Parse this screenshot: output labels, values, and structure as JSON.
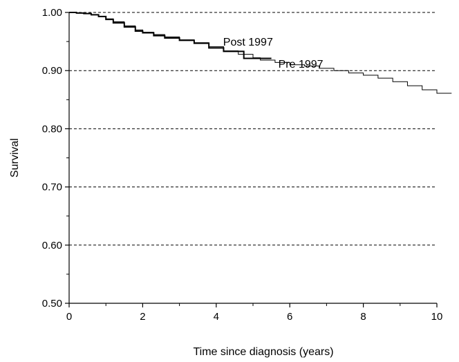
{
  "chart_data": {
    "type": "line",
    "title": "",
    "xlabel": "Time since diagnosis (years)",
    "ylabel": "Survival",
    "xlim": [
      0,
      10
    ],
    "ylim": [
      0.5,
      1.0
    ],
    "x_ticks": [
      0,
      2,
      4,
      6,
      8,
      10
    ],
    "y_ticks": [
      0.5,
      0.6,
      0.7,
      0.8,
      0.9,
      1.0
    ],
    "x_tick_labels": [
      "0",
      "2",
      "4",
      "6",
      "8",
      "10"
    ],
    "y_tick_labels": [
      "0.50",
      "0.60",
      "0.70",
      "0.80",
      "0.90",
      "1.00"
    ],
    "grid": "horizontal dashed",
    "series": [
      {
        "name": "Pre 1997",
        "step": true,
        "stroke_width": 1,
        "points": [
          [
            0,
            1.0
          ],
          [
            0.2,
            0.999
          ],
          [
            0.4,
            0.998
          ],
          [
            0.6,
            0.996
          ],
          [
            0.8,
            0.993
          ],
          [
            1.0,
            0.989
          ],
          [
            1.2,
            0.984
          ],
          [
            1.5,
            0.977
          ],
          [
            1.8,
            0.97
          ],
          [
            2.0,
            0.966
          ],
          [
            2.3,
            0.962
          ],
          [
            2.6,
            0.958
          ],
          [
            3.0,
            0.953
          ],
          [
            3.4,
            0.948
          ],
          [
            3.8,
            0.941
          ],
          [
            4.2,
            0.934
          ],
          [
            4.6,
            0.928
          ],
          [
            5.0,
            0.922
          ],
          [
            5.2,
            0.918
          ],
          [
            5.6,
            0.914
          ],
          [
            6.0,
            0.91
          ],
          [
            6.4,
            0.908
          ],
          [
            6.8,
            0.904
          ],
          [
            7.2,
            0.9
          ],
          [
            7.6,
            0.896
          ],
          [
            8.0,
            0.892
          ],
          [
            8.4,
            0.887
          ],
          [
            8.8,
            0.881
          ],
          [
            9.2,
            0.874
          ],
          [
            9.6,
            0.867
          ],
          [
            10.0,
            0.861
          ],
          [
            10.4,
            0.861
          ]
        ]
      },
      {
        "name": "Post 1997",
        "step": true,
        "stroke_width": 2,
        "points": [
          [
            0,
            1.0
          ],
          [
            0.2,
            0.999
          ],
          [
            0.4,
            0.998
          ],
          [
            0.6,
            0.996
          ],
          [
            0.8,
            0.993
          ],
          [
            1.0,
            0.988
          ],
          [
            1.2,
            0.982
          ],
          [
            1.5,
            0.975
          ],
          [
            1.8,
            0.968
          ],
          [
            2.0,
            0.965
          ],
          [
            2.3,
            0.96
          ],
          [
            2.6,
            0.956
          ],
          [
            3.0,
            0.952
          ],
          [
            3.4,
            0.947
          ],
          [
            3.8,
            0.939
          ],
          [
            4.2,
            0.933
          ],
          [
            4.6,
            0.933
          ],
          [
            4.75,
            0.921
          ],
          [
            5.5,
            0.921
          ]
        ]
      }
    ],
    "annotations": [
      {
        "text": "Post 1997",
        "x": 4.0,
        "y": 0.938
      },
      {
        "text": "Pre 1997",
        "x": 5.5,
        "y": 0.9
      }
    ]
  }
}
